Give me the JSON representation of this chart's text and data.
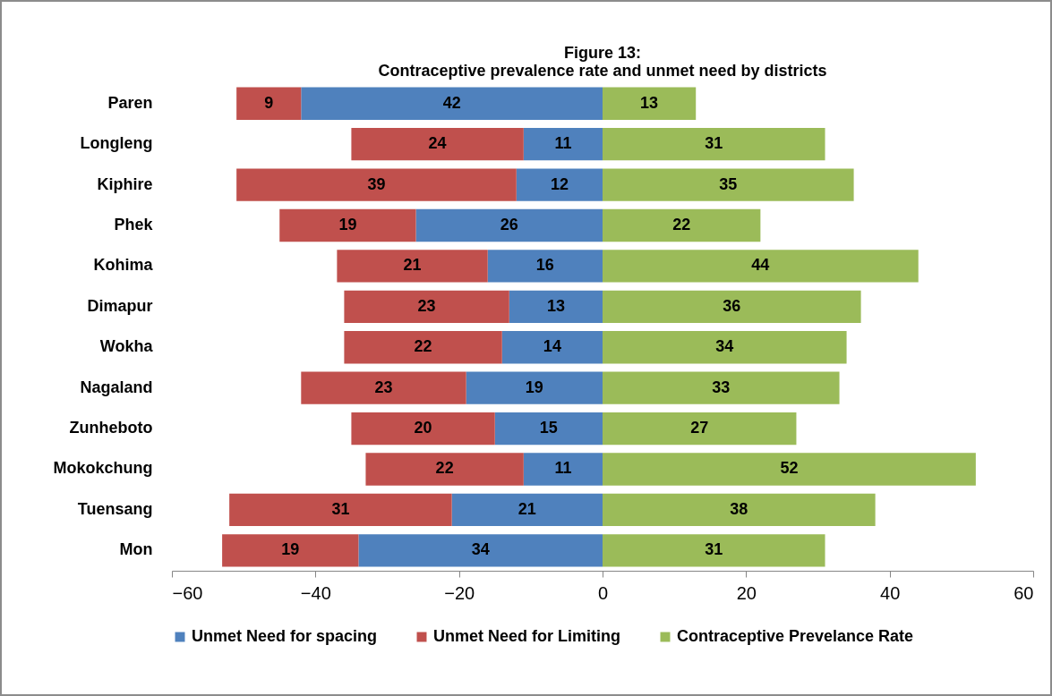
{
  "chart_data": {
    "type": "bar",
    "orientation": "horizontal",
    "title": "Figure 13:",
    "subtitle": "Contraceptive prevalence rate and unmet need by districts",
    "categories": [
      "Paren",
      "Longleng",
      "Kiphire",
      "Phek",
      "Kohima",
      "Dimapur",
      "Wokha",
      "Nagaland",
      "Zunheboto",
      "Mokokchung",
      "Tuensang",
      "Mon"
    ],
    "series": [
      {
        "name": "Unmet Need for spacing",
        "color": "#4f81bd",
        "values": [
          42,
          11,
          12,
          26,
          16,
          13,
          14,
          19,
          15,
          11,
          21,
          34
        ],
        "base": [
          -42,
          -11,
          -12,
          -26,
          -16,
          -13,
          -14,
          -19,
          -15,
          -11,
          -21,
          -34
        ]
      },
      {
        "name": "Unmet Need for Limiting",
        "color": "#c0504d",
        "values": [
          9,
          24,
          39,
          19,
          21,
          23,
          22,
          23,
          20,
          22,
          31,
          19
        ],
        "base": [
          -51,
          -35,
          -51,
          -45,
          -37,
          -36,
          -36,
          -42,
          -35,
          -33,
          -52,
          -53
        ]
      },
      {
        "name": "Contraceptive Prevelance Rate",
        "color": "#9bbb59",
        "values": [
          13,
          31,
          35,
          22,
          44,
          36,
          34,
          33,
          27,
          52,
          38,
          31
        ]
      }
    ],
    "data_labels": true,
    "xlim": [
      -60,
      60
    ],
    "xticks": [
      -60,
      -40,
      -20,
      0,
      20,
      40,
      60
    ],
    "legend": "bottom"
  }
}
